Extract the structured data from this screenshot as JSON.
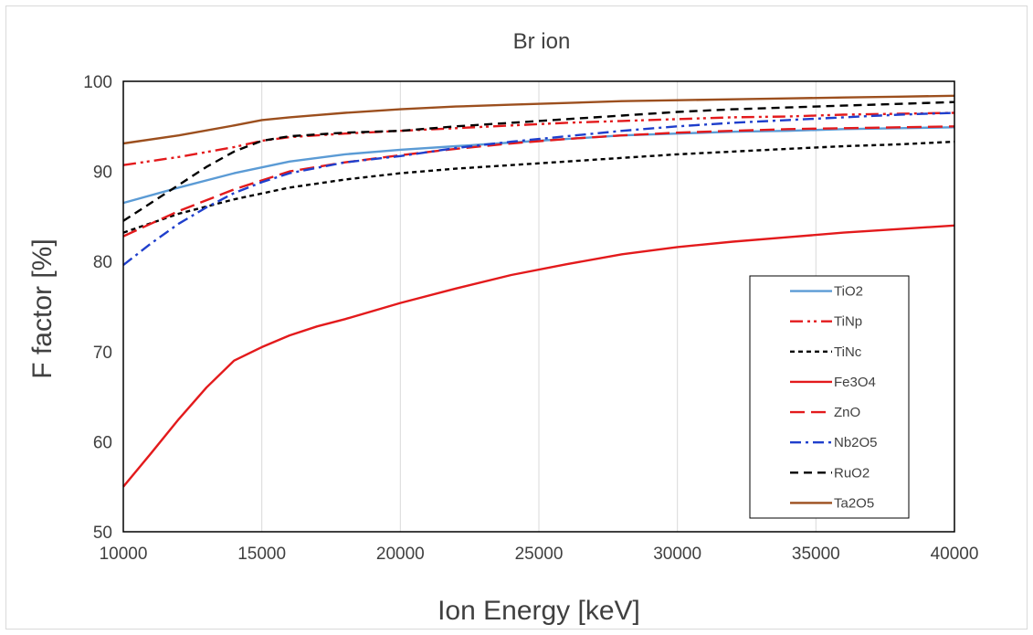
{
  "chart_data": {
    "type": "line",
    "title": "Br ion",
    "xlabel": "Ion Energy [keV]",
    "ylabel": "F factor [%]",
    "xlim": [
      10000,
      40000
    ],
    "ylim": [
      50,
      100
    ],
    "xticks": [
      10000,
      15000,
      20000,
      25000,
      30000,
      35000,
      40000
    ],
    "yticks": [
      50,
      60,
      70,
      80,
      90,
      100
    ],
    "grid": "vertical",
    "legend_position": "bottom-right",
    "series": [
      {
        "name": "TiO2",
        "color": "#5B9BD5",
        "dash": "solid",
        "x": [
          10000,
          12000,
          14000,
          16000,
          18000,
          20000,
          22000,
          24000,
          26000,
          28000,
          30000,
          32000,
          34000,
          36000,
          38000,
          40000
        ],
        "y": [
          86.5,
          88.2,
          89.8,
          91.1,
          91.9,
          92.4,
          92.8,
          93.2,
          93.6,
          94.0,
          94.2,
          94.4,
          94.5,
          94.7,
          94.8,
          94.9
        ]
      },
      {
        "name": "TiNp",
        "color": "#E31A1C",
        "dash": "dashdotdot",
        "x": [
          10000,
          12000,
          14000,
          15000,
          16000,
          18000,
          20000,
          22000,
          24000,
          26000,
          28000,
          30000,
          32000,
          34000,
          36000,
          38000,
          40000
        ],
        "y": [
          90.7,
          91.6,
          92.7,
          93.4,
          93.8,
          94.2,
          94.5,
          94.8,
          95.1,
          95.4,
          95.6,
          95.8,
          96.0,
          96.1,
          96.3,
          96.4,
          96.5
        ]
      },
      {
        "name": "TiNc",
        "color": "#000000",
        "dash": "shortdash",
        "x": [
          10000,
          12000,
          14000,
          16000,
          18000,
          20000,
          22000,
          24000,
          26000,
          28000,
          30000,
          32000,
          34000,
          36000,
          38000,
          40000
        ],
        "y": [
          83.2,
          85.3,
          86.9,
          88.2,
          89.1,
          89.8,
          90.3,
          90.7,
          91.1,
          91.5,
          91.9,
          92.2,
          92.5,
          92.8,
          93.0,
          93.3
        ]
      },
      {
        "name": "Fe3O4",
        "color": "#E31A1C",
        "dash": "solid",
        "x": [
          10000,
          11000,
          12000,
          13000,
          14000,
          15000,
          16000,
          17000,
          18000,
          20000,
          22000,
          24000,
          26000,
          28000,
          30000,
          32000,
          34000,
          36000,
          38000,
          40000
        ],
        "y": [
          55.0,
          58.7,
          62.5,
          66.0,
          69.0,
          70.5,
          71.8,
          72.8,
          73.6,
          75.4,
          77.0,
          78.5,
          79.7,
          80.8,
          81.6,
          82.2,
          82.7,
          83.2,
          83.6,
          84.0
        ]
      },
      {
        "name": "ZnO",
        "color": "#E31A1C",
        "dash": "longdash",
        "x": [
          10000,
          12000,
          14000,
          16000,
          18000,
          20000,
          22000,
          24000,
          26000,
          28000,
          30000,
          32000,
          34000,
          36000,
          38000,
          40000
        ],
        "y": [
          82.8,
          85.6,
          88.0,
          90.0,
          91.0,
          91.8,
          92.5,
          93.1,
          93.6,
          94.0,
          94.3,
          94.5,
          94.7,
          94.8,
          94.9,
          95.0
        ]
      },
      {
        "name": "Nb2O5",
        "color": "#1F3FCC",
        "dash": "dashdot",
        "x": [
          10000,
          11000,
          12000,
          13000,
          14000,
          15000,
          16000,
          18000,
          20000,
          22000,
          24000,
          26000,
          28000,
          30000,
          32000,
          34000,
          36000,
          38000,
          40000
        ],
        "y": [
          79.6,
          82.0,
          84.2,
          86.0,
          87.6,
          88.8,
          89.8,
          91.0,
          91.7,
          92.6,
          93.3,
          93.9,
          94.5,
          95.0,
          95.4,
          95.7,
          96.0,
          96.3,
          96.5
        ]
      },
      {
        "name": "RuO2",
        "color": "#000000",
        "dash": "dash",
        "x": [
          10000,
          11000,
          12000,
          13000,
          14000,
          15000,
          16000,
          18000,
          20000,
          22000,
          24000,
          26000,
          28000,
          30000,
          32000,
          34000,
          36000,
          38000,
          40000
        ],
        "y": [
          84.5,
          86.5,
          88.5,
          90.5,
          92.2,
          93.4,
          93.9,
          94.3,
          94.5,
          95.0,
          95.4,
          95.8,
          96.2,
          96.6,
          96.9,
          97.1,
          97.3,
          97.5,
          97.7
        ]
      },
      {
        "name": "Ta2O5",
        "color": "#9C4F1E",
        "dash": "solid",
        "x": [
          10000,
          12000,
          14000,
          15000,
          16000,
          18000,
          20000,
          22000,
          24000,
          26000,
          28000,
          30000,
          32000,
          34000,
          36000,
          38000,
          40000
        ],
        "y": [
          93.1,
          94.0,
          95.1,
          95.7,
          96.0,
          96.5,
          96.9,
          97.2,
          97.4,
          97.6,
          97.8,
          97.9,
          98.0,
          98.1,
          98.2,
          98.3,
          98.4
        ]
      }
    ]
  }
}
